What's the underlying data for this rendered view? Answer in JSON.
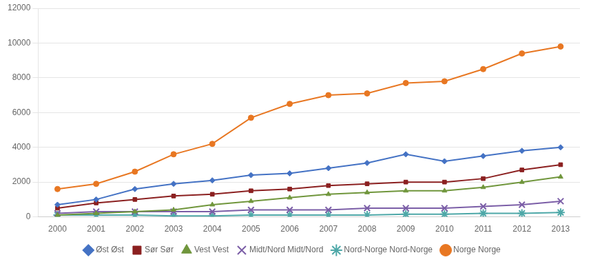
{
  "chart_data": {
    "type": "line",
    "categories": [
      "2000",
      "2001",
      "2002",
      "2003",
      "2004",
      "2005",
      "2006",
      "2007",
      "2008",
      "2009",
      "2010",
      "2011",
      "2012",
      "2013"
    ],
    "series": [
      {
        "name": "Øst Øst",
        "color": "#4472C4",
        "marker": "diamond",
        "values": [
          700,
          1000,
          1600,
          1900,
          2100,
          2400,
          2500,
          2800,
          3100,
          3600,
          3200,
          3500,
          3800,
          4000
        ]
      },
      {
        "name": "Sør Sør",
        "color": "#8B2020",
        "marker": "square",
        "values": [
          500,
          800,
          1000,
          1200,
          1300,
          1500,
          1600,
          1800,
          1900,
          2000,
          2000,
          2200,
          2700,
          3000
        ]
      },
      {
        "name": "Vest Vest",
        "color": "#70963C",
        "marker": "triangle",
        "values": [
          100,
          200,
          300,
          400,
          700,
          900,
          1100,
          1300,
          1400,
          1500,
          1500,
          1700,
          2000,
          2300
        ]
      },
      {
        "name": "Midt/Nord Midt/Nord",
        "color": "#7B5EA7",
        "marker": "x",
        "values": [
          200,
          300,
          300,
          300,
          300,
          400,
          400,
          400,
          500,
          500,
          500,
          600,
          700,
          900
        ]
      },
      {
        "name": "Nord-Norge Nord-Norge",
        "color": "#4EA8A8",
        "marker": "star",
        "values": [
          100,
          100,
          100,
          50,
          50,
          100,
          100,
          100,
          100,
          150,
          150,
          200,
          200,
          250
        ]
      },
      {
        "name": "Norge Norge",
        "color": "#E87722",
        "marker": "circle",
        "values": [
          1600,
          1900,
          2600,
          3600,
          4200,
          5700,
          6500,
          7000,
          7100,
          7700,
          7800,
          8500,
          9400,
          9800
        ]
      }
    ],
    "ylim": [
      0,
      12000
    ],
    "yticks": [
      0,
      2000,
      4000,
      6000,
      8000,
      10000,
      12000
    ],
    "grid": true,
    "legend": "bottom"
  }
}
